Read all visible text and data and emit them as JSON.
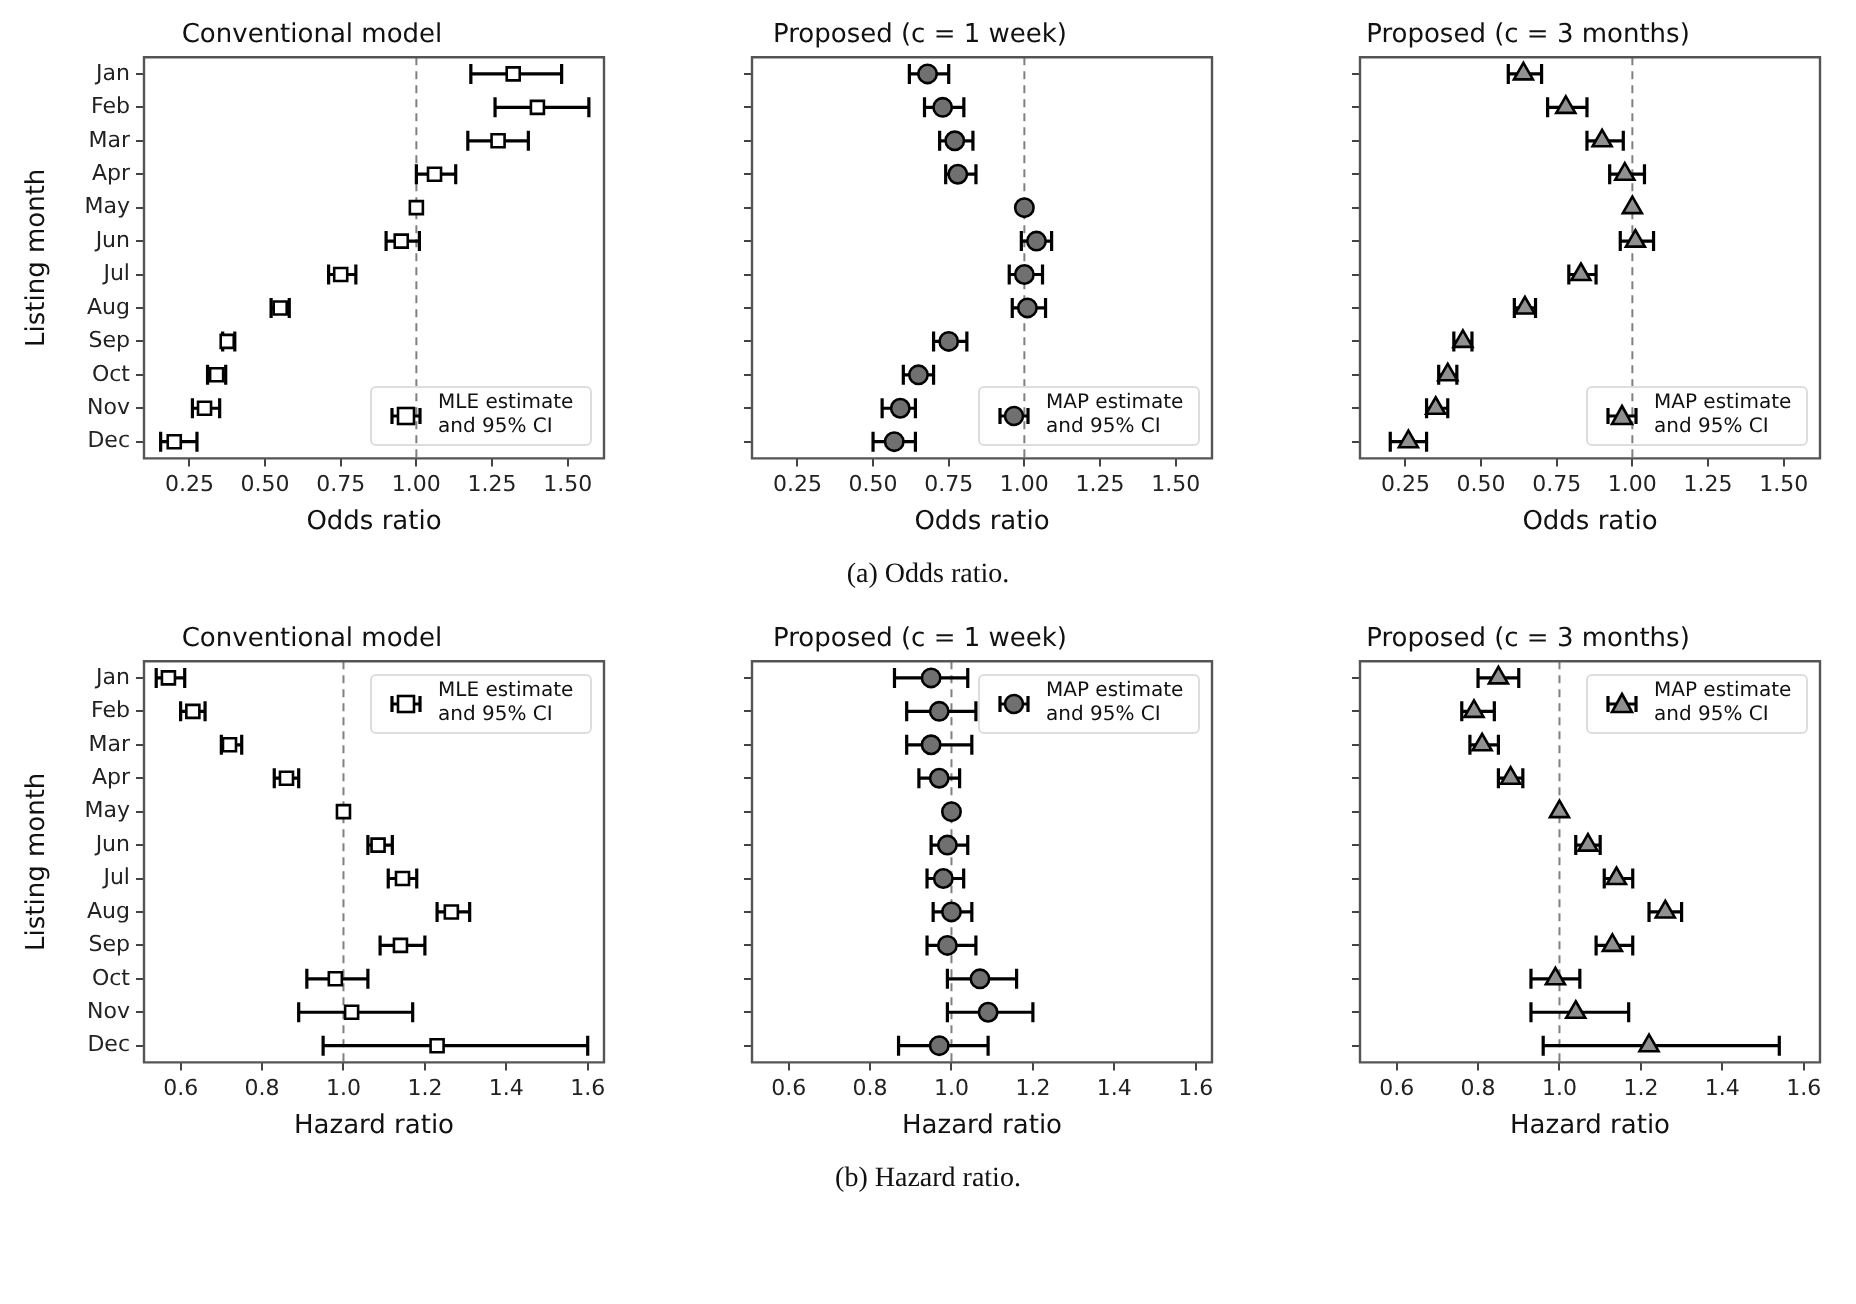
{
  "chart_data": [
    {
      "type": "scatter",
      "orientation": "horizontal",
      "title": "Conventional model",
      "xlabel": "Odds ratio",
      "ylabel": "Listing month",
      "categories": [
        "Jan",
        "Feb",
        "Mar",
        "Apr",
        "May",
        "Jun",
        "Jul",
        "Aug",
        "Sep",
        "Oct",
        "Nov",
        "Dec"
      ],
      "xlim": [
        0.1,
        1.62
      ],
      "xticks": [
        {
          "value": 0.25,
          "label": "0.25"
        },
        {
          "value": 0.5,
          "label": "0.50"
        },
        {
          "value": 0.75,
          "label": "0.75"
        },
        {
          "value": 1,
          "label": "1.00"
        },
        {
          "value": 1.25,
          "label": "1.25"
        },
        {
          "value": 1.5,
          "label": "1.50"
        }
      ],
      "marker": "square",
      "legend": "bottom right",
      "ref_lines": [
        {
          "axis": "x",
          "value": 1,
          "color": "#808080",
          "line_style": "dashed"
        }
      ],
      "series": [
        {
          "name": "MLE estimate and 95% CI",
          "color": "#ffffff",
          "values": [
            1.32,
            1.4,
            1.27,
            1.06,
            1.0,
            0.95,
            0.75,
            0.55,
            0.375,
            0.34,
            0.3,
            0.2
          ],
          "errors": [
            [
              1.18,
              1.48
            ],
            [
              1.26,
              1.57
            ],
            [
              1.17,
              1.37
            ],
            [
              1.0,
              1.13
            ],
            null,
            [
              0.9,
              1.01
            ],
            [
              0.71,
              0.8
            ],
            [
              0.52,
              0.58
            ],
            [
              0.36,
              0.4
            ],
            [
              0.31,
              0.37
            ],
            [
              0.26,
              0.35
            ],
            [
              0.155,
              0.275
            ]
          ]
        }
      ]
    },
    {
      "type": "scatter",
      "orientation": "horizontal",
      "title": "Proposed (c = 1 week)",
      "xlabel": "Odds ratio",
      "tick_labels": "x",
      "categories": [
        null,
        null,
        null,
        null,
        null,
        null,
        null,
        null,
        null,
        null,
        null,
        null
      ],
      "xlim": [
        0.1,
        1.62
      ],
      "xticks": [
        {
          "value": 0.25,
          "label": "0.25"
        },
        {
          "value": 0.5,
          "label": "0.50"
        },
        {
          "value": 0.75,
          "label": "0.75"
        },
        {
          "value": 1,
          "label": "1.00"
        },
        {
          "value": 1.25,
          "label": "1.25"
        },
        {
          "value": 1.5,
          "label": "1.50"
        }
      ],
      "marker": "circle",
      "legend": "bottom right",
      "ref_lines": [
        {
          "axis": "x",
          "value": 1,
          "color": "#808080",
          "line_style": "dashed"
        }
      ],
      "annotations": [
        "(a) Odds ratio."
      ],
      "series": [
        {
          "name": "MAP estimate and 95% CI",
          "color": "#707070",
          "values": [
            0.68,
            0.73,
            0.77,
            0.78,
            1.0,
            1.04,
            1.0,
            1.01,
            0.75,
            0.65,
            0.59,
            0.57
          ],
          "errors": [
            [
              0.62,
              0.75
            ],
            [
              0.67,
              0.8
            ],
            [
              0.72,
              0.83
            ],
            [
              0.74,
              0.84
            ],
            null,
            [
              0.99,
              1.09
            ],
            [
              0.95,
              1.06
            ],
            [
              0.96,
              1.07
            ],
            [
              0.7,
              0.81
            ],
            [
              0.6,
              0.7
            ],
            [
              0.53,
              0.64
            ],
            [
              0.5,
              0.64
            ]
          ]
        }
      ]
    },
    {
      "type": "scatter",
      "orientation": "horizontal",
      "title": "Proposed (c = 3 months)",
      "xlabel": "Odds ratio",
      "tick_labels": "x",
      "categories": [
        null,
        null,
        null,
        null,
        null,
        null,
        null,
        null,
        null,
        null,
        null,
        null
      ],
      "xlim": [
        0.1,
        1.62
      ],
      "xticks": [
        {
          "value": 0.25,
          "label": "0.25"
        },
        {
          "value": 0.5,
          "label": "0.50"
        },
        {
          "value": 0.75,
          "label": "0.75"
        },
        {
          "value": 1,
          "label": "1.00"
        },
        {
          "value": 1.25,
          "label": "1.25"
        },
        {
          "value": 1.5,
          "label": "1.50"
        }
      ],
      "marker": "triangle",
      "legend": "bottom right",
      "ref_lines": [
        {
          "axis": "x",
          "value": 1,
          "color": "#808080",
          "line_style": "dashed"
        }
      ],
      "series": [
        {
          "name": "MAP estimate and 95% CI",
          "color": "#909090",
          "values": [
            0.64,
            0.78,
            0.9,
            0.975,
            1.0,
            1.01,
            0.83,
            0.645,
            0.44,
            0.39,
            0.35,
            0.26
          ],
          "errors": [
            [
              0.59,
              0.7
            ],
            [
              0.72,
              0.85
            ],
            [
              0.85,
              0.97
            ],
            [
              0.925,
              1.04
            ],
            null,
            [
              0.96,
              1.07
            ],
            [
              0.79,
              0.88
            ],
            [
              0.61,
              0.68
            ],
            [
              0.41,
              0.47
            ],
            [
              0.36,
              0.42
            ],
            [
              0.32,
              0.39
            ],
            [
              0.2,
              0.32
            ]
          ]
        }
      ]
    },
    {
      "type": "scatter",
      "orientation": "horizontal",
      "title": "Conventional model",
      "xlabel": "Hazard ratio",
      "ylabel": "Listing month",
      "categories": [
        "Jan",
        "Feb",
        "Mar",
        "Apr",
        "May",
        "Jun",
        "Jul",
        "Aug",
        "Sep",
        "Oct",
        "Nov",
        "Dec"
      ],
      "xlim": [
        0.51,
        1.64
      ],
      "xticks": [
        0.6,
        0.8,
        {
          "value": 1,
          "label": "1.0"
        },
        1.2,
        1.4,
        1.6
      ],
      "marker": "square",
      "legend": "top right",
      "ref_lines": [
        {
          "axis": "x",
          "value": 1,
          "color": "#808080",
          "line_style": "dashed"
        }
      ],
      "series": [
        {
          "name": "MLE estimate and 95% CI",
          "color": "#ffffff",
          "values": [
            0.57,
            0.63,
            0.72,
            0.86,
            1.0,
            1.085,
            1.145,
            1.265,
            1.14,
            0.98,
            1.02,
            1.23
          ],
          "errors": [
            [
              0.54,
              0.61
            ],
            [
              0.6,
              0.66
            ],
            [
              0.7,
              0.75
            ],
            [
              0.83,
              0.89
            ],
            null,
            [
              1.06,
              1.12
            ],
            [
              1.11,
              1.18
            ],
            [
              1.23,
              1.31
            ],
            [
              1.09,
              1.2
            ],
            [
              0.91,
              1.06
            ],
            [
              0.89,
              1.17
            ],
            [
              0.95,
              1.6
            ]
          ]
        }
      ]
    },
    {
      "type": "scatter",
      "orientation": "horizontal",
      "title": "Proposed (c = 1 week)",
      "xlabel": "Hazard ratio",
      "tick_labels": "x",
      "categories": [
        null,
        null,
        null,
        null,
        null,
        null,
        null,
        null,
        null,
        null,
        null,
        null
      ],
      "xlim": [
        0.51,
        1.64
      ],
      "xticks": [
        0.6,
        0.8,
        {
          "value": 1,
          "label": "1.0"
        },
        1.2,
        1.4,
        1.6
      ],
      "marker": "circle",
      "legend": "top right",
      "ref_lines": [
        {
          "axis": "x",
          "value": 1,
          "color": "#808080",
          "line_style": "dashed"
        }
      ],
      "annotations": [
        "(b) Hazard ratio."
      ],
      "series": [
        {
          "name": "MAP estimate and 95% CI",
          "color": "#707070",
          "values": [
            0.95,
            0.97,
            0.95,
            0.97,
            1.0,
            0.99,
            0.98,
            1.0,
            0.99,
            1.07,
            1.09,
            0.97
          ],
          "errors": [
            [
              0.86,
              1.04
            ],
            [
              0.89,
              1.06
            ],
            [
              0.89,
              1.05
            ],
            [
              0.92,
              1.02
            ],
            null,
            [
              0.95,
              1.04
            ],
            [
              0.94,
              1.03
            ],
            [
              0.955,
              1.05
            ],
            [
              0.94,
              1.06
            ],
            [
              0.99,
              1.16
            ],
            [
              0.99,
              1.2
            ],
            [
              0.87,
              1.09
            ]
          ]
        }
      ]
    },
    {
      "type": "scatter",
      "orientation": "horizontal",
      "title": "Proposed (c = 3 months)",
      "xlabel": "Hazard ratio",
      "tick_labels": "x",
      "categories": [
        null,
        null,
        null,
        null,
        null,
        null,
        null,
        null,
        null,
        null,
        null,
        null
      ],
      "xlim": [
        0.51,
        1.64
      ],
      "xticks": [
        0.6,
        0.8,
        {
          "value": 1,
          "label": "1.0"
        },
        1.2,
        1.4,
        1.6
      ],
      "marker": "triangle",
      "legend": "top right",
      "ref_lines": [
        {
          "axis": "x",
          "value": 1,
          "color": "#808080",
          "line_style": "dashed"
        }
      ],
      "series": [
        {
          "name": "MAP estimate and 95% CI",
          "color": "#909090",
          "values": [
            0.85,
            0.79,
            0.81,
            0.88,
            1.0,
            1.07,
            1.14,
            1.26,
            1.13,
            0.99,
            1.04,
            1.22
          ],
          "errors": [
            [
              0.8,
              0.9
            ],
            [
              0.76,
              0.84
            ],
            [
              0.78,
              0.85
            ],
            [
              0.85,
              0.91
            ],
            null,
            [
              1.04,
              1.1
            ],
            [
              1.11,
              1.18
            ],
            [
              1.22,
              1.3
            ],
            [
              1.09,
              1.18
            ],
            [
              0.93,
              1.05
            ],
            [
              0.93,
              1.17
            ],
            [
              0.96,
              1.54
            ]
          ]
        }
      ]
    }
  ]
}
